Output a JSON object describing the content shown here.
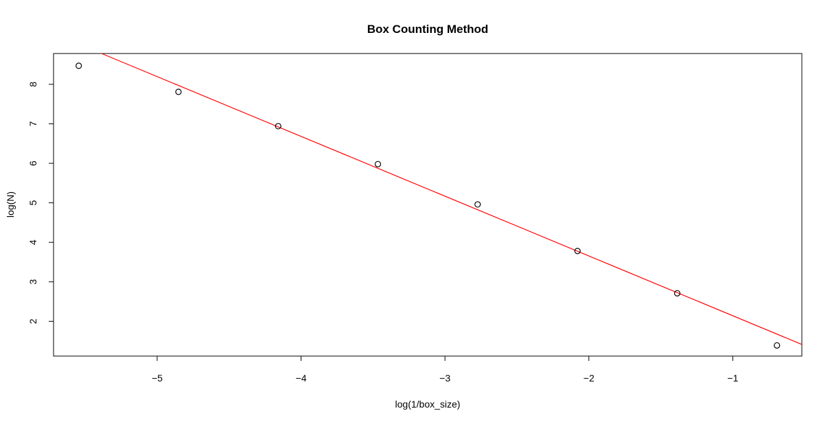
{
  "chart_data": {
    "type": "scatter",
    "title": "Box Counting Method",
    "xlabel": "log(1/box_size)",
    "ylabel": "log(N)",
    "xlim": [
      -5.72,
      -0.52
    ],
    "ylim": [
      1.12,
      8.78
    ],
    "xticks": [
      -5,
      -4,
      -3,
      -2,
      -1
    ],
    "yticks": [
      2,
      3,
      4,
      5,
      6,
      7,
      8
    ],
    "grid": false,
    "points": [
      {
        "x": -5.545,
        "y": 8.47
      },
      {
        "x": -4.852,
        "y": 7.81
      },
      {
        "x": -4.159,
        "y": 6.94
      },
      {
        "x": -3.466,
        "y": 5.98
      },
      {
        "x": -2.773,
        "y": 4.96
      },
      {
        "x": -2.079,
        "y": 3.78
      },
      {
        "x": -1.386,
        "y": 2.71
      },
      {
        "x": -0.693,
        "y": 1.39
      }
    ],
    "fit_line": {
      "slope": -1.5136,
      "intercept": 0.6278,
      "color": "#ff0000"
    },
    "point_color": "#000000"
  }
}
